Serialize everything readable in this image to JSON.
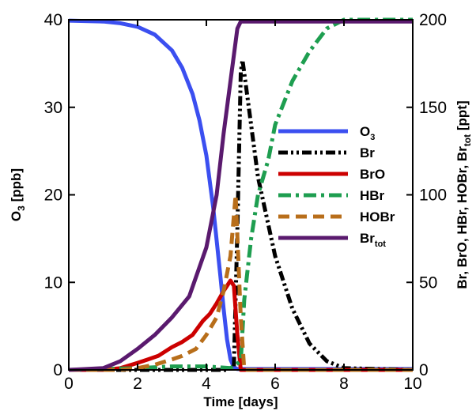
{
  "chart_data": {
    "type": "line",
    "xlabel": "Time [days]",
    "ylabel_left": {
      "text": "O",
      "sub": "3",
      "tail": " [ppb]"
    },
    "ylabel_right": {
      "text": "Br, BrO, HBr, HOBr, Br",
      "sub": "tot",
      "tail": " [ppt]"
    },
    "xlim": [
      0,
      10
    ],
    "ylim_left": [
      0,
      40
    ],
    "ylim_right": [
      0,
      200
    ],
    "x_ticks": [
      0,
      2,
      4,
      6,
      8,
      10
    ],
    "y_left_ticks": [
      0,
      10,
      20,
      30,
      40
    ],
    "y_right_ticks": [
      0,
      50,
      100,
      150,
      200
    ],
    "grid": false,
    "legend_position": "center-right",
    "series": [
      {
        "name": "O",
        "name_sub": "3",
        "axis": "left",
        "color": "#3b4ff0",
        "dash": "solid",
        "x": [
          0,
          1,
          1.5,
          2,
          2.5,
          3,
          3.3,
          3.6,
          3.8,
          4.0,
          4.2,
          4.4,
          4.5,
          4.6,
          4.7,
          4.8,
          4.9,
          10
        ],
        "y": [
          39.9,
          39.8,
          39.6,
          39.2,
          38.3,
          36.5,
          34.5,
          31.5,
          28.5,
          24.5,
          18.5,
          11,
          7,
          3.5,
          1.2,
          0.3,
          0.1,
          0.1
        ]
      },
      {
        "name": "Br",
        "name_sub": "",
        "axis": "right",
        "color": "#000000",
        "dash": "dashdotdot",
        "x": [
          0,
          4.6,
          4.8,
          4.9,
          5.0,
          5.05,
          5.2,
          5.5,
          6.0,
          6.5,
          7.0,
          7.5,
          8.0,
          10
        ],
        "y": [
          0,
          0,
          2,
          80,
          170,
          177,
          155,
          110,
          65,
          35,
          15,
          5,
          1,
          0
        ]
      },
      {
        "name": "BrO",
        "name_sub": "",
        "axis": "right",
        "color": "#cc0000",
        "dash": "solid",
        "x": [
          0,
          1,
          1.5,
          2,
          2.3,
          2.6,
          3.0,
          3.3,
          3.6,
          3.9,
          4.1,
          4.3,
          4.5,
          4.7,
          4.8,
          4.9,
          5.0,
          10
        ],
        "y": [
          0,
          0,
          1,
          4,
          6,
          8,
          13,
          16,
          20,
          28,
          32,
          38,
          45,
          51,
          48,
          20,
          0,
          0
        ]
      },
      {
        "name": "HBr",
        "name_sub": "",
        "axis": "right",
        "color": "#1e9e50",
        "dash": "dashdot",
        "x": [
          0,
          2,
          3,
          4,
          4.7,
          5.0,
          5.1,
          5.3,
          5.5,
          5.8,
          6.0,
          6.5,
          7.0,
          7.5,
          8.0,
          10
        ],
        "y": [
          0,
          1,
          2,
          2,
          1,
          5,
          40,
          75,
          100,
          120,
          140,
          165,
          182,
          195,
          200,
          200
        ]
      },
      {
        "name": "HOBr",
        "name_sub": "",
        "axis": "right",
        "color": "#b86e1a",
        "dash": "dashed",
        "x": [
          0,
          1.5,
          2,
          2.5,
          3.0,
          3.3,
          3.7,
          4.0,
          4.3,
          4.5,
          4.7,
          4.85,
          5.0,
          5.1,
          10
        ],
        "y": [
          0,
          0,
          1,
          3,
          6,
          8,
          12,
          20,
          30,
          45,
          65,
          100,
          30,
          0,
          0
        ]
      },
      {
        "name": "Br",
        "name_sub": "tot",
        "axis": "right",
        "color": "#5a1a6e",
        "dash": "solid",
        "x": [
          0,
          1.0,
          1.5,
          2.0,
          2.5,
          3.0,
          3.5,
          4.0,
          4.3,
          4.5,
          4.7,
          4.9,
          5.0,
          10
        ],
        "y": [
          0,
          1,
          5,
          12,
          20,
          30,
          42,
          70,
          100,
          135,
          165,
          195,
          199,
          199
        ]
      }
    ]
  }
}
